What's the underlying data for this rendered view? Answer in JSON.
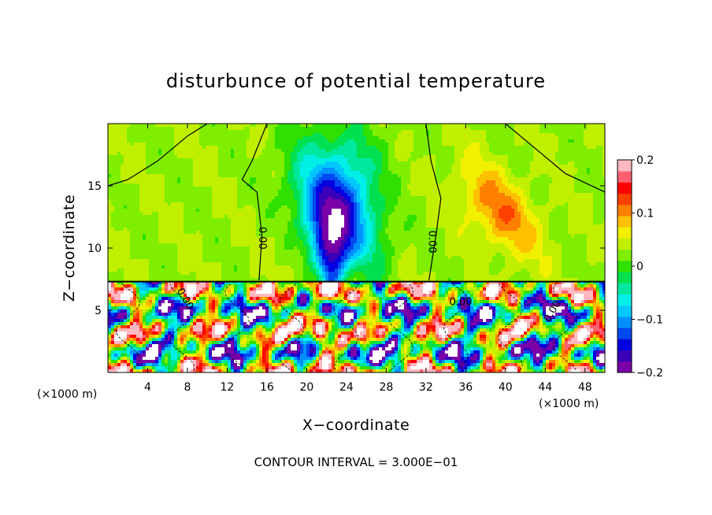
{
  "chart_data": {
    "type": "heatmap",
    "title": "disturbunce of potential temperature",
    "xlabel": "X−coordinate",
    "ylabel": "Z−coordinate",
    "x_unit": "(×1000 m)",
    "y_unit": "(×1000 m)",
    "xlim": [
      0,
      50
    ],
    "ylim": [
      0,
      20
    ],
    "x_ticks": [
      4,
      8,
      12,
      16,
      20,
      24,
      28,
      32,
      36,
      40,
      44,
      48
    ],
    "x_tick_labels": [
      "4",
      "8",
      "12",
      "16",
      "20",
      "24",
      "28",
      "32",
      "36",
      "40",
      "44",
      "48"
    ],
    "y_ticks": [
      5,
      10,
      15
    ],
    "y_tick_labels": [
      "5",
      "10",
      "15"
    ],
    "colorbar": {
      "range": [
        -0.2,
        0.2
      ],
      "ticks": [
        0.2,
        0.1,
        0,
        -0.1,
        -0.2
      ],
      "tick_labels": [
        "0.2",
        "0.1",
        "0",
        "−0.1",
        "−0.2"
      ],
      "colors": [
        "#7a00a8",
        "#3a00b8",
        "#0000e0",
        "#0048f0",
        "#0090ff",
        "#00c8ff",
        "#00f0e8",
        "#00e8a0",
        "#00e050",
        "#30e000",
        "#80ee00",
        "#c0f000",
        "#f0f000",
        "#ffc000",
        "#ff8000",
        "#ff4000",
        "#ff0000",
        "#ff6070",
        "#ffb8c0"
      ]
    },
    "contour_interval_label": "CONTOUR INTERVAL = 3.000E−01",
    "contour_labels": [
      "0.00",
      "0.00",
      "0.00",
      "0.00",
      "0.00"
    ],
    "upper_layer": {
      "z_range": [
        7.3,
        20
      ],
      "background_value": 0.03,
      "features": [
        {
          "kind": "cold-plume",
          "x_center": 22.5,
          "z_base": 7.3,
          "z_top": 20,
          "min_value": -0.2
        },
        {
          "kind": "cold-lobe",
          "x_center": 26,
          "z_base": 7.3,
          "z_top": 15,
          "min_value": -0.12
        },
        {
          "kind": "warm-plume",
          "x_center": 40,
          "z_base": 9,
          "z_top": 17,
          "max_value": 0.1
        }
      ]
    },
    "lower_layer": {
      "z_range": [
        0,
        7.3
      ],
      "description_value_range": [
        -0.2,
        0.2
      ]
    },
    "grid": false
  }
}
